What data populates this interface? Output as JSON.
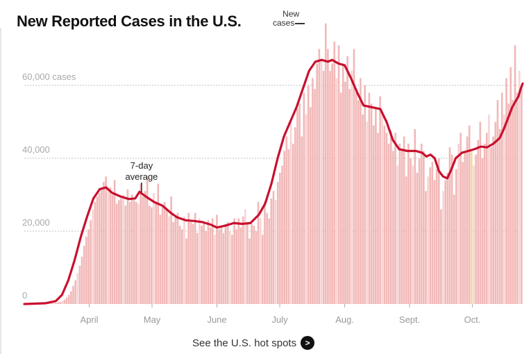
{
  "header": {
    "title": "New Reported Cases in the U.S.",
    "legend_new_cases_line1": "New",
    "legend_new_cases_line2": "cases"
  },
  "footer": {
    "cta_label": "See the U.S. hot spots",
    "cta_icon": "arrow-right-icon"
  },
  "colors": {
    "bar": "#f2b8b8",
    "bar_alt": "#f7d4d4",
    "average_line": "#c8102e",
    "highlight_bar": "#f7d79a",
    "gridline": "#cccccc",
    "axis_text": "#999999"
  },
  "chart_data": {
    "type": "bar",
    "title": "New Reported Cases in the U.S.",
    "xlabel": "",
    "ylabel": "cases",
    "ylim": [
      0,
      75000
    ],
    "x_start_day": 0,
    "x_end_day": 238,
    "x_unit": "days since Mar. 1",
    "y_ticks": [
      {
        "value": 0,
        "label": "0"
      },
      {
        "value": 20000,
        "label": "20,000"
      },
      {
        "value": 40000,
        "label": "40,000"
      },
      {
        "value": 60000,
        "label": "60,000 cases"
      }
    ],
    "x_ticks": [
      {
        "day": 31,
        "label": "April"
      },
      {
        "day": 61,
        "label": "May"
      },
      {
        "day": 92,
        "label": "June"
      },
      {
        "day": 122,
        "label": "July"
      },
      {
        "day": 153,
        "label": "Aug."
      },
      {
        "day": 184,
        "label": "Sept."
      },
      {
        "day": 214,
        "label": "Oct."
      }
    ],
    "grid": true,
    "legend": "top",
    "annotations": [
      {
        "label_line1": "7-day",
        "label_line2": "average",
        "day": 56,
        "series": "7-day average"
      },
      {
        "label_line1": "New",
        "label_line2": "cases",
        "day": 138,
        "series": "New cases"
      }
    ],
    "highlight_day": 205,
    "series": [
      {
        "name": "7-day average",
        "type": "line",
        "points": [
          [
            0,
            0
          ],
          [
            10,
            200
          ],
          [
            15,
            800
          ],
          [
            18,
            2500
          ],
          [
            21,
            6500
          ],
          [
            24,
            12000
          ],
          [
            27,
            18500
          ],
          [
            30,
            24000
          ],
          [
            33,
            29000
          ],
          [
            36,
            31500
          ],
          [
            39,
            32000
          ],
          [
            42,
            30500
          ],
          [
            46,
            29500
          ],
          [
            50,
            28800
          ],
          [
            53,
            29000
          ],
          [
            55,
            30800
          ],
          [
            58,
            29500
          ],
          [
            62,
            28000
          ],
          [
            66,
            27000
          ],
          [
            70,
            25000
          ],
          [
            73,
            23800
          ],
          [
            77,
            23000
          ],
          [
            81,
            22800
          ],
          [
            85,
            22500
          ],
          [
            89,
            21800
          ],
          [
            92,
            21000
          ],
          [
            96,
            21500
          ],
          [
            100,
            22200
          ],
          [
            104,
            22000
          ],
          [
            108,
            22200
          ],
          [
            112,
            24500
          ],
          [
            115,
            27500
          ],
          [
            118,
            33000
          ],
          [
            121,
            40000
          ],
          [
            124,
            46000
          ],
          [
            127,
            50000
          ],
          [
            130,
            54000
          ],
          [
            133,
            59000
          ],
          [
            136,
            64000
          ],
          [
            139,
            66500
          ],
          [
            142,
            67000
          ],
          [
            145,
            66500
          ],
          [
            147,
            67000
          ],
          [
            150,
            66000
          ],
          [
            153,
            65500
          ],
          [
            156,
            62000
          ],
          [
            159,
            58000
          ],
          [
            162,
            54500
          ],
          [
            166,
            54000
          ],
          [
            170,
            53500
          ],
          [
            173,
            50000
          ],
          [
            176,
            45000
          ],
          [
            179,
            42500
          ],
          [
            183,
            42000
          ],
          [
            187,
            42000
          ],
          [
            190,
            41500
          ],
          [
            192,
            40500
          ],
          [
            194,
            41000
          ],
          [
            196,
            40000
          ],
          [
            198,
            36500
          ],
          [
            200,
            35000
          ],
          [
            202,
            34500
          ],
          [
            204,
            37000
          ],
          [
            206,
            40000
          ],
          [
            209,
            41500
          ],
          [
            212,
            42000
          ],
          [
            215,
            42500
          ],
          [
            218,
            43200
          ],
          [
            221,
            43000
          ],
          [
            224,
            44000
          ],
          [
            227,
            45500
          ],
          [
            229,
            48000
          ],
          [
            231,
            51000
          ],
          [
            233,
            54000
          ],
          [
            235,
            56000
          ],
          [
            236,
            57000
          ],
          [
            237,
            59000
          ],
          [
            238,
            60500
          ]
        ]
      },
      {
        "name": "New cases",
        "type": "bar",
        "values": [
          0,
          0,
          0,
          0,
          0,
          0,
          0,
          0,
          0,
          0,
          0,
          100,
          150,
          200,
          300,
          450,
          600,
          800,
          1200,
          1800,
          2500,
          3500,
          5000,
          6500,
          8500,
          10500,
          13000,
          16000,
          18500,
          20500,
          23000,
          26000,
          28000,
          29500,
          30500,
          31500,
          33500,
          35000,
          31000,
          32000,
          30000,
          34000,
          27500,
          28500,
          29000,
          30000,
          27000,
          31500,
          28000,
          30000,
          28500,
          28000,
          27500,
          33000,
          29500,
          31000,
          35000,
          27000,
          26500,
          30500,
          28000,
          33000,
          24500,
          27000,
          28000,
          26000,
          24000,
          29500,
          22500,
          24000,
          25000,
          21500,
          20500,
          24000,
          18000,
          25000,
          22500,
          22000,
          25000,
          19500,
          23500,
          21500,
          22500,
          20000,
          23000,
          21000,
          23500,
          19000,
          24500,
          20500,
          21000,
          19500,
          22000,
          22500,
          20000,
          19000,
          23500,
          20500,
          23500,
          21000,
          24000,
          26000,
          22000,
          18000,
          22000,
          21500,
          20000,
          28000,
          23500,
          19000,
          28000,
          25000,
          23500,
          29000,
          31000,
          28500,
          33500,
          36000,
          38000,
          42000,
          46000,
          42500,
          50000,
          44000,
          48500,
          53500,
          55000,
          46000,
          58000,
          52000,
          60000,
          54000,
          62000,
          59000,
          66000,
          70000,
          67000,
          64000,
          77000,
          70000,
          64000,
          66000,
          72000,
          62000,
          71000,
          58000,
          66000,
          61000,
          68000,
          59000,
          64000,
          70000,
          58000,
          56000,
          62000,
          52000,
          60000,
          50000,
          58000,
          55000,
          49000,
          54000,
          47000,
          57000,
          52000,
          49000,
          47000,
          44000,
          47500,
          42000,
          47000,
          38000,
          44000,
          42000,
          46000,
          35000,
          44000,
          40000,
          38000,
          48000,
          36000,
          40000,
          44000,
          42000,
          31000,
          35000,
          37500,
          39000,
          34000,
          37000,
          40000,
          26000,
          31000,
          34000,
          36000,
          43000,
          41000,
          30000,
          37000,
          44000,
          47000,
          39000,
          42000,
          46000,
          49000,
          42000,
          38000,
          41000,
          45000,
          50000,
          40000,
          44000,
          47000,
          52000,
          43000,
          46000,
          50000,
          56000,
          48000,
          58000,
          52000,
          62000,
          55000,
          65000,
          56000,
          71000,
          58000,
          64000,
          60000
        ],
        "note": "daily values estimated from bar heights"
      }
    ]
  }
}
